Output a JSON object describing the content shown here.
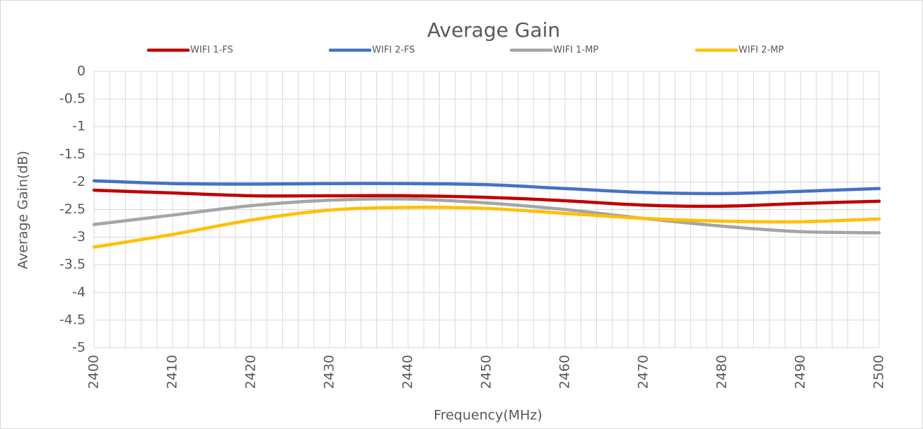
{
  "chart_data": {
    "type": "line",
    "title": "Average Gain",
    "x_label": "Frequency(MHz)",
    "y_label": "Average Gain(dB)",
    "x": [
      2400,
      2410,
      2420,
      2430,
      2440,
      2450,
      2460,
      2470,
      2480,
      2490,
      2500
    ],
    "series": [
      {
        "name": "WIFI 1-FS",
        "color": "#c00000",
        "values": [
          -2.15,
          -2.2,
          -2.25,
          -2.25,
          -2.25,
          -2.28,
          -2.34,
          -2.42,
          -2.44,
          -2.39,
          -2.35
        ]
      },
      {
        "name": "WIFI 2-FS",
        "color": "#4472c4",
        "values": [
          -1.98,
          -2.03,
          -2.04,
          -2.03,
          -2.03,
          -2.05,
          -2.12,
          -2.19,
          -2.21,
          -2.17,
          -2.12
        ]
      },
      {
        "name": "WIFI 1-MP",
        "color": "#a5a5a5",
        "values": [
          -2.77,
          -2.6,
          -2.43,
          -2.33,
          -2.31,
          -2.38,
          -2.5,
          -2.66,
          -2.8,
          -2.9,
          -2.92
        ]
      },
      {
        "name": "WIFI 2-MP",
        "color": "#ffc000",
        "values": [
          -3.18,
          -2.95,
          -2.69,
          -2.51,
          -2.46,
          -2.48,
          -2.57,
          -2.66,
          -2.71,
          -2.72,
          -2.67
        ]
      }
    ],
    "xlim": [
      2400,
      2500
    ],
    "xticks": [
      2400,
      2410,
      2420,
      2430,
      2440,
      2450,
      2460,
      2470,
      2480,
      2490,
      2500
    ],
    "ylim": [
      -5,
      0
    ],
    "yticks": [
      0,
      -0.5,
      -1,
      -1.5,
      -2,
      -2.5,
      -3,
      -3.5,
      -4,
      -4.5,
      -5
    ],
    "grid": true,
    "legend": "top",
    "smooth": true
  }
}
